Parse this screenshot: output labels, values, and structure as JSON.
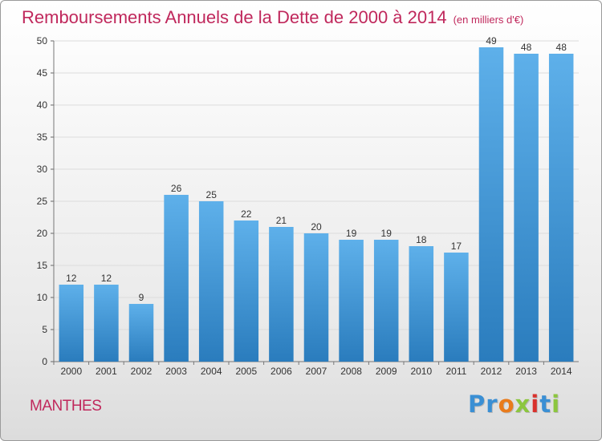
{
  "chart_data": {
    "type": "bar",
    "title": "Remboursements Annuels de la Dette de 2000 à 2014",
    "subtitle": "(en milliers d'€)",
    "categories": [
      "2000",
      "2001",
      "2002",
      "2003",
      "2004",
      "2005",
      "2006",
      "2007",
      "2008",
      "2009",
      "2010",
      "2011",
      "2012",
      "2013",
      "2014"
    ],
    "values": [
      12,
      12,
      9,
      26,
      25,
      22,
      21,
      20,
      19,
      19,
      18,
      17,
      49,
      48,
      48
    ],
    "ylim": [
      0,
      50
    ],
    "yticks": [
      0,
      5,
      10,
      15,
      20,
      25,
      30,
      35,
      40,
      45,
      50
    ],
    "xlabel": "",
    "ylabel": "",
    "grid": true,
    "colors": {
      "bar_top": "#5eb0ea",
      "bar_bottom": "#2a7cbd",
      "title": "#c0285c"
    }
  },
  "footer": {
    "town": "MANTHES",
    "logo_letters": [
      {
        "char": "P",
        "color": "#3a8fd4"
      },
      {
        "char": "r",
        "color": "#3a8fd4"
      },
      {
        "char": "o",
        "color": "#e97b1c"
      },
      {
        "char": "x",
        "color": "#8cc63e"
      },
      {
        "char": "i",
        "color": "#d9312c"
      },
      {
        "char": "t",
        "color": "#3a8fd4"
      },
      {
        "char": "i",
        "color": "#8cc63e"
      }
    ]
  }
}
